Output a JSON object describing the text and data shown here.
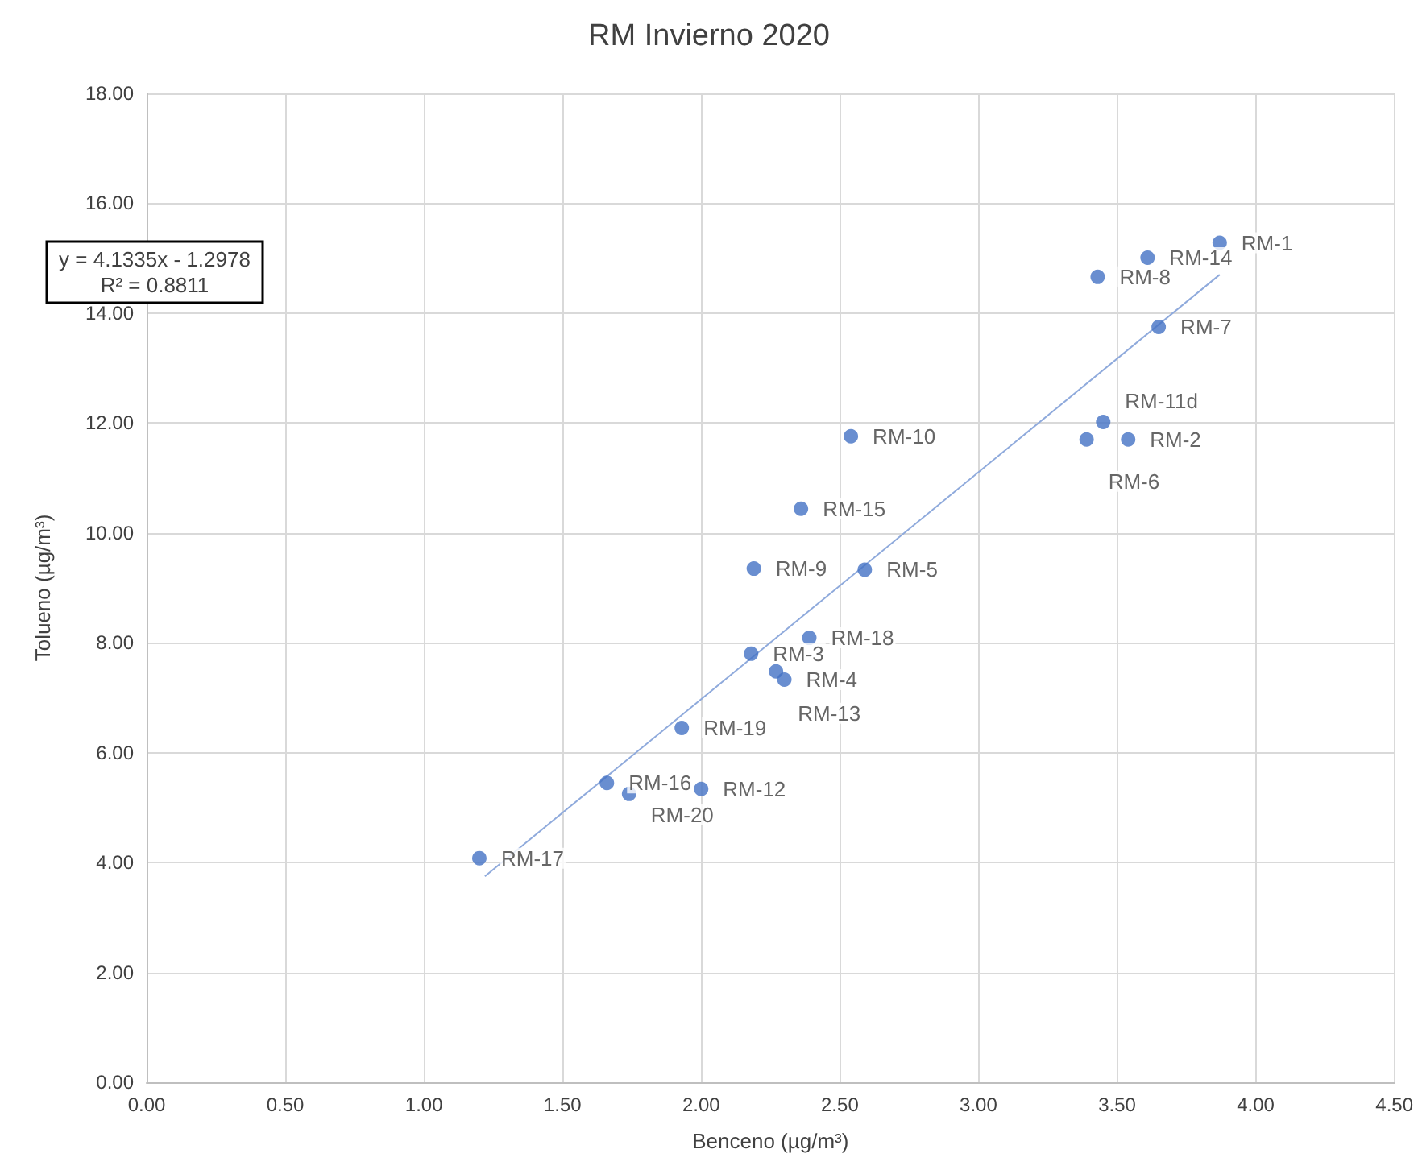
{
  "chart_data": {
    "type": "scatter",
    "title": "RM Invierno 2020",
    "xlabel": "Benceno (µg/m³)",
    "ylabel": "Tolueno (µg/m³)",
    "annotations": [
      "y = 4.1335x - 1.2978",
      "R² = 0.8811"
    ],
    "series": [
      {
        "marker": "circle",
        "color": "#4472c4",
        "x": [
          3.87,
          3.54,
          2.18,
          2.3,
          2.59,
          3.39,
          3.65,
          3.43,
          2.19,
          2.54,
          3.45,
          2.0,
          2.27,
          3.61,
          2.36,
          1.66,
          1.2,
          2.39,
          1.93,
          1.74
        ],
        "values": [
          15.28,
          11.7,
          7.8,
          7.33,
          9.33,
          11.7,
          13.75,
          14.66,
          9.35,
          11.76,
          12.02,
          5.34,
          7.48,
          15.01,
          10.44,
          5.45,
          4.08,
          8.09,
          6.45,
          5.25
        ],
        "value_labels": [
          "RM-1",
          "RM-2",
          "RM-3",
          "RM-4",
          "RM-5",
          "RM-6",
          "RM-7",
          "RM-8",
          "RM-9",
          "RM-10",
          "RM-11d",
          "RM-12",
          "RM-13",
          "RM-14",
          "RM-15",
          "RM-16",
          "RM-17",
          "RM-18",
          "RM-19",
          "RM-20"
        ]
      },
      {
        "type": "line",
        "marker": "none",
        "color": "#8faadc",
        "x": [
          1.22,
          3.87
        ],
        "values": [
          3.75,
          14.7
        ]
      }
    ],
    "xlim": [
      0,
      4.5
    ],
    "xticks": [
      {
        "value": 0,
        "label": "0.00"
      },
      {
        "value": 0.5,
        "label": "0.50"
      },
      {
        "value": 1,
        "label": "1.00"
      },
      {
        "value": 1.5,
        "label": "1.50"
      },
      {
        "value": 2,
        "label": "2.00"
      },
      {
        "value": 2.5,
        "label": "2.50"
      },
      {
        "value": 3,
        "label": "3.00"
      },
      {
        "value": 3.5,
        "label": "3.50"
      },
      {
        "value": 4,
        "label": "4.00"
      },
      {
        "value": 4.5,
        "label": "4.50"
      }
    ],
    "ylim": [
      0,
      18
    ],
    "yticks": [
      {
        "value": 0,
        "label": "0.00"
      },
      {
        "value": 2,
        "label": "2.00"
      },
      {
        "value": 4,
        "label": "4.00"
      },
      {
        "value": 6,
        "label": "6.00"
      },
      {
        "value": 8,
        "label": "8.00"
      },
      {
        "value": 10,
        "label": "10.00"
      },
      {
        "value": 12,
        "label": "12.00"
      },
      {
        "value": 14,
        "label": "14.00"
      },
      {
        "value": 16,
        "label": "16.00"
      },
      {
        "value": 18,
        "label": "18.00"
      }
    ],
    "grid": true
  }
}
